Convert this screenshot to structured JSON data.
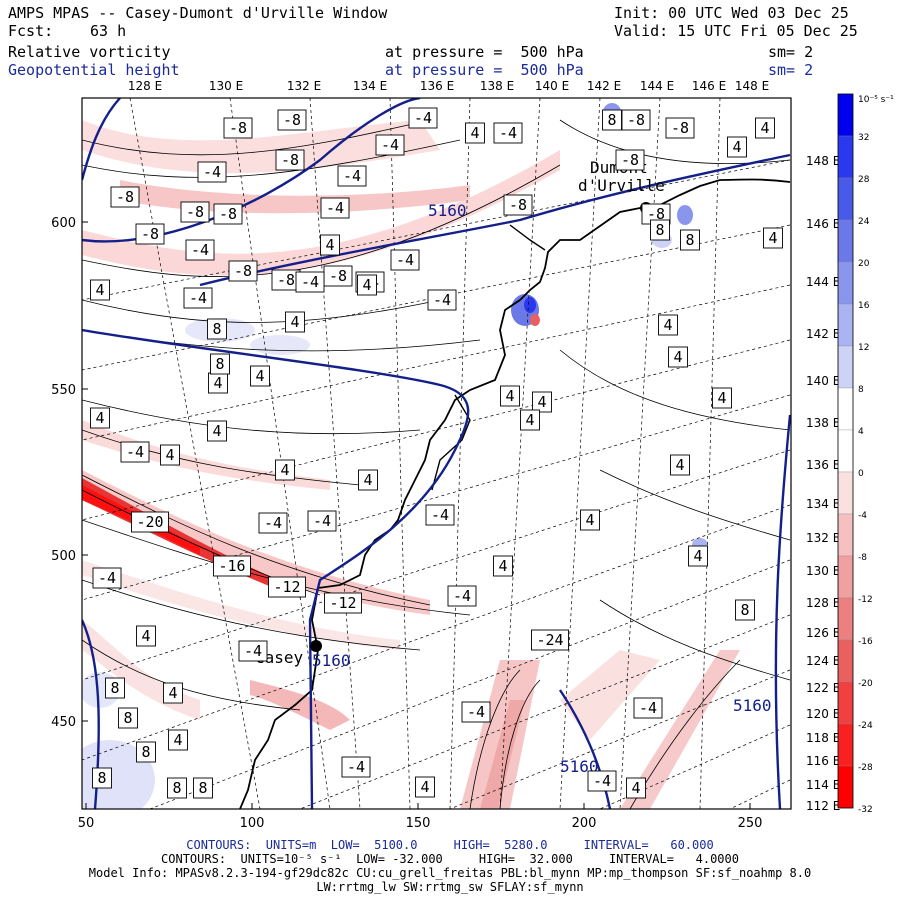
{
  "header": {
    "title": "AMPS MPAS -- Casey-Dumont d'Urville Window",
    "init": "Init: 00 UTC Wed 03 Dec 25",
    "fcst_label": "Fcst:",
    "fcst_value": "63 h",
    "valid": "Valid: 15 UTC Fri 05 Dec 25",
    "field1_name": "Relative vorticity",
    "field1_pressure": "at pressure =  500 hPa",
    "field1_sm": "sm= 2",
    "field2_name": "Geopotential height",
    "field2_pressure": "at pressure =  500 hPa",
    "field2_sm": "sm= 2"
  },
  "colors": {
    "neg_strong": "#ff2020",
    "pos_strong": "#0a10e0",
    "height_contour": "#14208a"
  },
  "axes": {
    "x_ticks": [
      "50",
      "100",
      "150",
      "200",
      "250"
    ],
    "y_ticks": [
      "600",
      "550",
      "500",
      "450"
    ],
    "top_lon_labels": [
      "128 E",
      "130 E",
      "132 E",
      "134 E",
      "136 E",
      "138 E",
      "140 E",
      "142 E",
      "144 E",
      "146 E",
      "148 E"
    ],
    "right_lon_labels": [
      "148 E",
      "146 E",
      "144 E",
      "142 E",
      "140 E",
      "138 E",
      "136 E",
      "134 E",
      "132 E",
      "130 E",
      "128 E",
      "126 E",
      "124 E",
      "122 E",
      "120 E",
      "118 E",
      "116 E",
      "114 E",
      "112 E"
    ]
  },
  "colorbar": {
    "unit": "10⁻⁵ s⁻¹",
    "labels": [
      "32",
      "28",
      "24",
      "20",
      "16",
      "12",
      "8",
      "4",
      "0",
      "-4",
      "-8",
      "-12",
      "-16",
      "-20",
      "-24",
      "-28",
      "-32"
    ],
    "colors": [
      "#0000ee",
      "#2a38f0",
      "#4a5ae8",
      "#6a78e8",
      "#8a96ee",
      "#aab4f2",
      "#cdd3f6",
      "#ffffff",
      "#ffffff",
      "#fbe0e0",
      "#f6c0c0",
      "#f0a0a0",
      "#ec8080",
      "#e86060",
      "#f04040",
      "#f82020",
      "#ff0000"
    ]
  },
  "places": {
    "dumont": "Dumont\nd'Urville",
    "casey": "Casey"
  },
  "contour_labels": {
    "heights": [
      "5160",
      "5160",
      "5160",
      "5160"
    ],
    "vorticity": [
      "-8",
      "-8",
      "-8",
      "-8",
      "-8",
      "-8",
      "-8",
      "-8",
      "-8",
      "-8",
      "-8",
      "-8",
      "-8",
      "-8",
      "-8",
      "-4",
      "-4",
      "-4",
      "-4",
      "-4",
      "-4",
      "-4",
      "-4",
      "-4",
      "-4",
      "-4",
      "-4",
      "-4",
      "-4",
      "-4",
      "-4",
      "-4",
      "-4",
      "-4",
      "-4",
      "-4",
      "-4",
      "-4",
      "4",
      "4",
      "4",
      "4",
      "4",
      "4",
      "4",
      "4",
      "4",
      "4",
      "4",
      "4",
      "4",
      "4",
      "4",
      "4",
      "4",
      "4",
      "4",
      "4",
      "4",
      "4",
      "4",
      "4",
      "4",
      "4",
      "4",
      "4",
      "4",
      "4",
      "8",
      "8",
      "8",
      "8",
      "8",
      "8",
      "8",
      "8",
      "8",
      "8",
      "8",
      "8",
      "-24",
      "-20",
      "-16",
      "-12",
      "-12"
    ]
  },
  "footer": {
    "line1": "CONTOURS:  UNITS=m  LOW=  5100.0     HIGH=  5280.0     INTERVAL=   60.000",
    "line2": "CONTOURS:  UNITS=10⁻⁵ s⁻¹  LOW= -32.000     HIGH=  32.000     INTERVAL=   4.0000",
    "line3": "Model Info: MPASv8.2.3-194-gf29dc82c CU:cu_grell_freitas PBL:bl_mynn MP:mp_thompson SF:sf_noahmp 8.0",
    "line4": "LW:rrtmg_lw SW:rrtmg_sw SFLAY:sf_mynn"
  }
}
